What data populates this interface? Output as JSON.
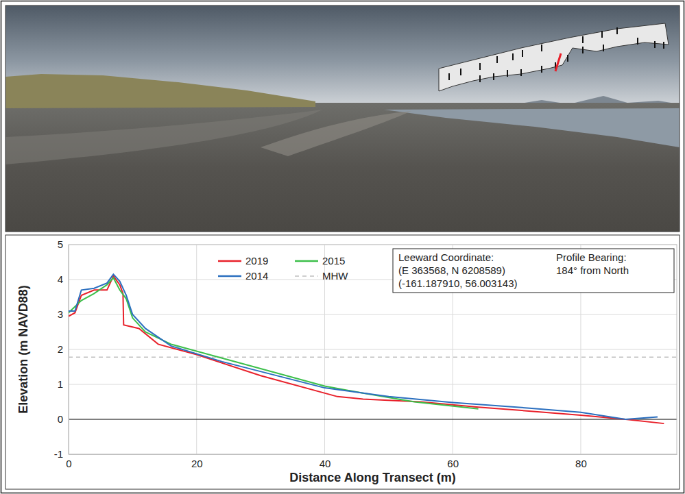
{
  "chart_data": {
    "type": "line",
    "x_label": "Distance Along Transect (m)",
    "y_label": "Elevation (m NAVD88)",
    "xlim": [
      0,
      95
    ],
    "xticks": [
      0,
      20,
      40,
      60,
      80
    ],
    "ylim": [
      -1,
      5
    ],
    "yticks": [
      -1,
      0,
      1,
      2,
      3,
      4,
      5
    ],
    "grid": true,
    "legend": "upper center",
    "series": [
      {
        "name": "2019",
        "color": "#e8202a",
        "x": [
          0,
          1,
          2,
          4,
          6,
          7,
          8,
          8.5,
          8.6,
          11,
          14,
          20,
          30,
          42,
          46,
          55,
          64,
          80,
          87,
          93
        ],
        "values": [
          2.95,
          3.05,
          3.55,
          3.7,
          3.7,
          4.1,
          3.85,
          3.6,
          2.7,
          2.6,
          2.15,
          1.85,
          1.25,
          0.65,
          0.58,
          0.5,
          0.35,
          0.12,
          0.0,
          -0.12
        ]
      },
      {
        "name": "2015",
        "color": "#3cbf4a",
        "x": [
          0,
          2,
          4,
          6,
          7,
          8,
          9,
          10,
          12,
          16,
          24,
          40,
          46,
          54,
          64
        ],
        "values": [
          3.05,
          3.4,
          3.6,
          3.85,
          4.05,
          3.7,
          3.45,
          2.9,
          2.5,
          2.15,
          1.75,
          0.95,
          0.75,
          0.5,
          0.3
        ]
      },
      {
        "name": "2014",
        "color": "#2b6fbf",
        "x": [
          0,
          1,
          2,
          4,
          6,
          7,
          8,
          9,
          10,
          12,
          16,
          24,
          40,
          50,
          60,
          72,
          80,
          87,
          92
        ],
        "values": [
          3.1,
          3.1,
          3.7,
          3.75,
          3.9,
          4.15,
          3.95,
          3.55,
          3.0,
          2.6,
          2.1,
          1.65,
          0.9,
          0.65,
          0.48,
          0.32,
          0.2,
          0.0,
          0.07
        ]
      },
      {
        "name": "MHW",
        "type": "hline",
        "color": "#bfbfbf",
        "line_style": "dashed",
        "values": [
          1.78
        ]
      }
    ],
    "annotations": [
      {
        "lines": [
          "Leeward Coordinate:",
          "(E 363568, N 6208589)",
          "(-161.187910, 56.003143)"
        ]
      },
      {
        "lines": [
          "Profile Bearing:",
          "184° from North"
        ]
      }
    ]
  }
}
